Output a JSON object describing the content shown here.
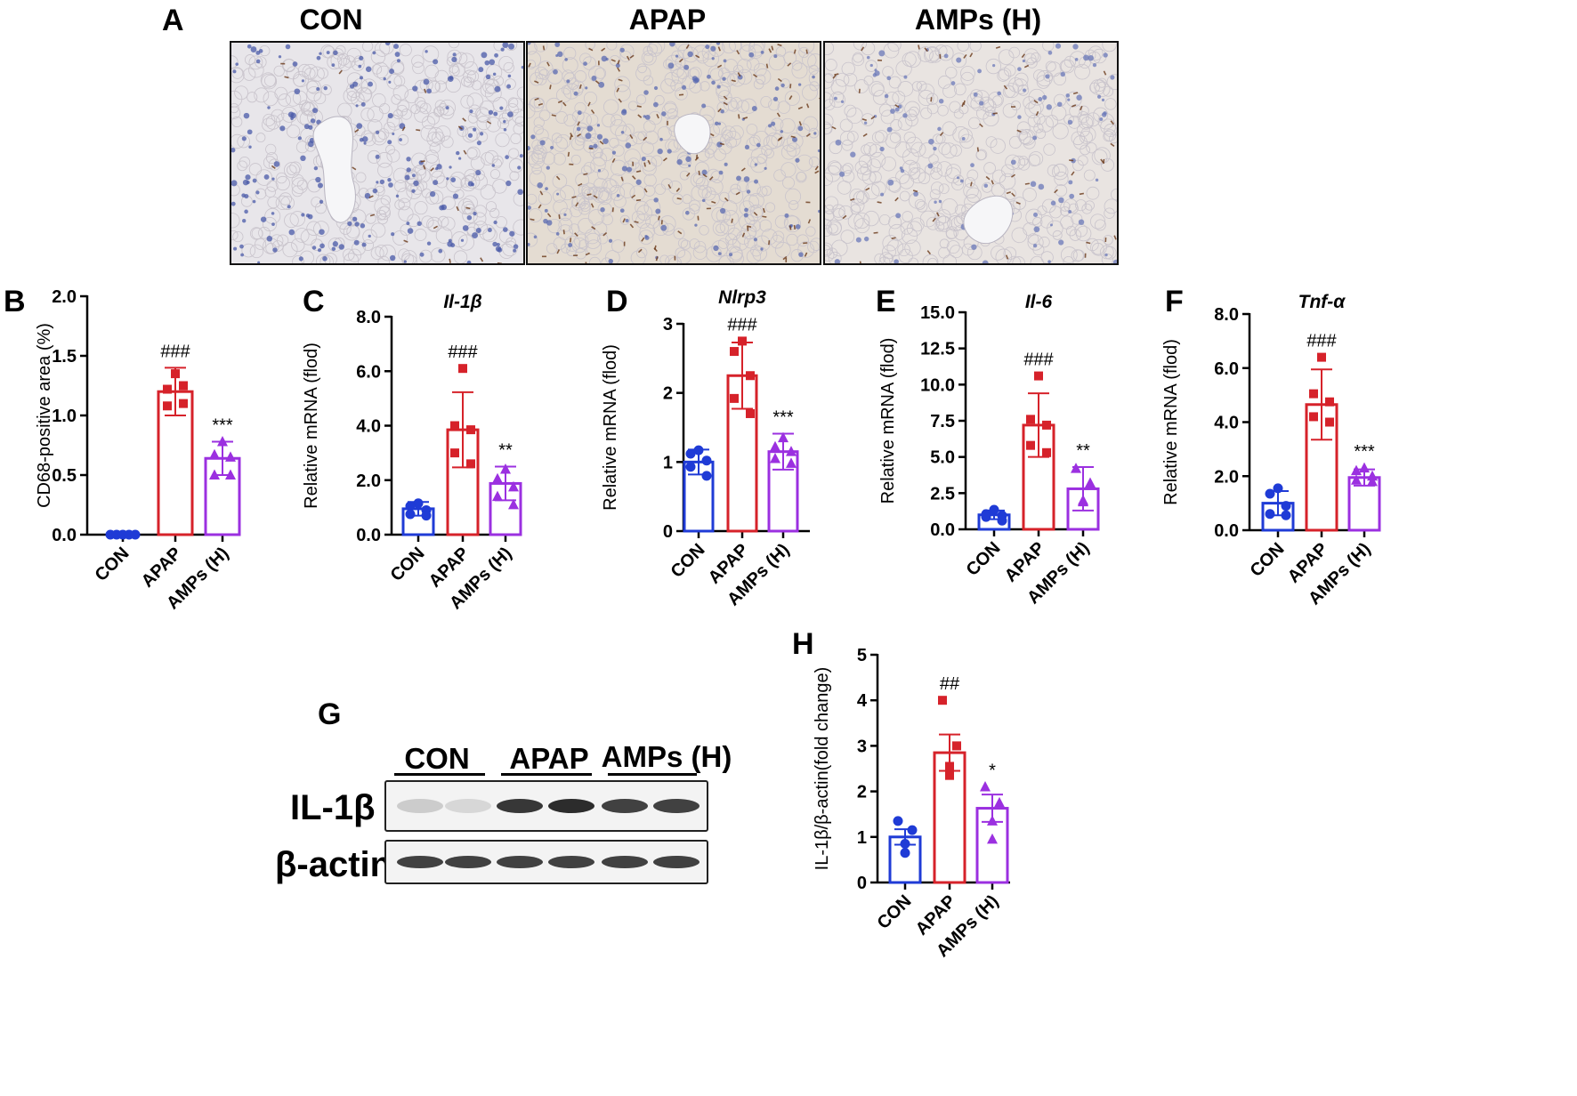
{
  "panel_a": {
    "letter": "A",
    "groups": [
      "CON",
      "APAP",
      "AMPs (H)"
    ]
  },
  "panel_g": {
    "letter": "G",
    "lane_groups": [
      "CON",
      "APAP",
      "AMPs (H)"
    ],
    "rows": [
      {
        "label": "IL-1β",
        "band_intensity": [
          0.15,
          0.1,
          0.85,
          0.9,
          0.8,
          0.8
        ]
      },
      {
        "label": "β-actin",
        "band_intensity": [
          0.8,
          0.8,
          0.8,
          0.8,
          0.8,
          0.8
        ]
      }
    ]
  },
  "colors": {
    "CON": "#1f3bd6",
    "APAP": "#d6222a",
    "AMPs (H)": "#9b30e0"
  },
  "chart_data": [
    {
      "id": "B",
      "letter": "B",
      "type": "bar",
      "title": "",
      "ylabel": "CD68-positive area (%)",
      "ylim": [
        0,
        2.0
      ],
      "yticks": [
        0,
        0.5,
        1.0,
        1.5,
        2.0
      ],
      "ytick_labels": [
        "0.0",
        "0.5",
        "1.0",
        "1.5",
        "2.0"
      ],
      "categories": [
        "CON",
        "APAP",
        "AMPs (H)"
      ],
      "values": [
        0.0,
        1.2,
        0.64
      ],
      "errors": [
        0.0,
        0.2,
        0.14
      ],
      "error_type": "SD",
      "points": [
        [
          0,
          0,
          0,
          0,
          0
        ],
        [
          1.35,
          1.22,
          1.25,
          1.08,
          1.1
        ],
        [
          0.78,
          0.67,
          0.65,
          0.5,
          0.5
        ]
      ],
      "annotations": [
        "",
        "###",
        "***"
      ]
    },
    {
      "id": "C",
      "letter": "C",
      "type": "bar",
      "title": "Il-1β",
      "ylabel": "Relative mRNA (flod)",
      "ylim": [
        0,
        8.0
      ],
      "yticks": [
        0,
        2,
        4,
        6,
        8
      ],
      "ytick_labels": [
        "0.0",
        "2.0",
        "4.0",
        "6.0",
        "8.0"
      ],
      "categories": [
        "CON",
        "APAP",
        "AMPs (H)"
      ],
      "values": [
        0.95,
        3.85,
        1.88
      ],
      "errors": [
        0.25,
        1.38,
        0.62
      ],
      "error_type": "SD",
      "points": [
        [
          1.15,
          1.05,
          0.9,
          0.75,
          0.7
        ],
        [
          6.1,
          4.0,
          3.85,
          3.0,
          2.6
        ],
        [
          2.4,
          2.05,
          1.75,
          1.4,
          1.1
        ]
      ],
      "annotations": [
        "",
        "###",
        "**"
      ]
    },
    {
      "id": "D",
      "letter": "D",
      "type": "bar",
      "title": "Nlrp3",
      "ylabel": "Relative mRNA (flod)",
      "ylim": [
        0,
        3
      ],
      "yticks": [
        0,
        1,
        2,
        3
      ],
      "ytick_labels": [
        "0",
        "1",
        "2",
        "3"
      ],
      "categories": [
        "CON",
        "APAP",
        "AMPs (H)"
      ],
      "values": [
        1.0,
        2.25,
        1.15
      ],
      "errors": [
        0.18,
        0.48,
        0.26
      ],
      "error_type": "SD",
      "points": [
        [
          1.17,
          1.12,
          1.02,
          0.93,
          0.8
        ],
        [
          2.75,
          2.6,
          2.25,
          1.92,
          1.7
        ],
        [
          1.35,
          1.22,
          1.15,
          1.05,
          0.98
        ]
      ],
      "annotations": [
        "",
        "###",
        "***"
      ]
    },
    {
      "id": "E",
      "letter": "E",
      "type": "bar",
      "title": "Il-6",
      "ylabel": "Relative mRNA (flod)",
      "ylim": [
        0,
        15.0
      ],
      "yticks": [
        0,
        2.5,
        5,
        7.5,
        10,
        12.5,
        15
      ],
      "ytick_labels": [
        "0.0",
        "2.5",
        "5.0",
        "7.5",
        "10.0",
        "12.5",
        "15.0"
      ],
      "categories": [
        "CON",
        "APAP",
        "AMPs (H)"
      ],
      "values": [
        1.0,
        7.2,
        2.8
      ],
      "errors": [
        0.3,
        2.2,
        1.5
      ],
      "error_type": "SD",
      "points": [
        [
          1.35,
          1.05,
          0.95,
          0.85,
          0.6
        ],
        [
          10.6,
          7.6,
          7.2,
          5.8,
          5.3
        ],
        [
          4.2,
          3.2,
          2.0,
          1.9
        ],
        []
      ],
      "annotations": [
        "",
        "###",
        "**"
      ]
    },
    {
      "id": "F",
      "letter": "F",
      "type": "bar",
      "title": "Tnf-α",
      "ylabel": "Relative mRNA (flod)",
      "ylim": [
        0,
        8.0
      ],
      "yticks": [
        0,
        2,
        4,
        6,
        8
      ],
      "ytick_labels": [
        "0.0",
        "2.0",
        "4.0",
        "6.0",
        "8.0"
      ],
      "categories": [
        "CON",
        "APAP",
        "AMPs (H)"
      ],
      "values": [
        1.0,
        4.65,
        1.95
      ],
      "errors": [
        0.45,
        1.3,
        0.3
      ],
      "error_type": "SD",
      "points": [
        [
          1.55,
          1.35,
          0.9,
          0.6,
          0.55
        ],
        [
          6.4,
          5.05,
          4.75,
          4.2,
          4.0
        ],
        [
          2.3,
          2.2,
          2.0,
          1.85,
          1.8
        ]
      ],
      "annotations": [
        "",
        "###",
        "***"
      ]
    },
    {
      "id": "H",
      "letter": "H",
      "type": "bar",
      "title": "",
      "ylabel": "IL-1β/β-actin(fold change)",
      "ylim": [
        0,
        5
      ],
      "yticks": [
        0,
        1,
        2,
        3,
        4,
        5
      ],
      "ytick_labels": [
        "0",
        "1",
        "2",
        "3",
        "4",
        "5"
      ],
      "categories": [
        "CON",
        "APAP",
        "AMPs (H)"
      ],
      "values": [
        1.0,
        2.85,
        1.63
      ],
      "errors": [
        0.17,
        0.4,
        0.3
      ],
      "error_type": "SEM",
      "points": [
        [
          1.35,
          1.15,
          0.85,
          0.65
        ],
        [
          4.0,
          3.0,
          2.55,
          2.35
        ],
        [
          2.1,
          1.75,
          1.35,
          0.95
        ]
      ],
      "annotations": [
        "",
        "##",
        "*"
      ]
    }
  ]
}
